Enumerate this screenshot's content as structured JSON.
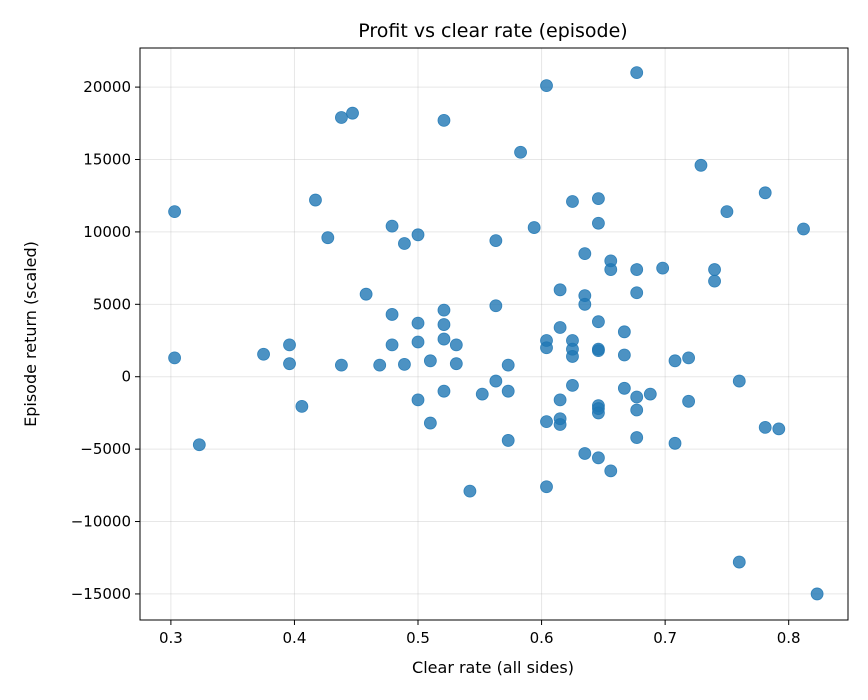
{
  "chart_data": {
    "type": "scatter",
    "title": "Profit vs clear rate (episode)",
    "xlabel": "Clear rate (all sides)",
    "ylabel": "Episode return (scaled)",
    "xlim": [
      0.275,
      0.848
    ],
    "ylim": [
      -16800,
      22700
    ],
    "xticks": [
      0.3,
      0.4,
      0.5,
      0.6,
      0.7,
      0.8
    ],
    "xtick_labels": [
      "0.3",
      "0.4",
      "0.5",
      "0.6",
      "0.7",
      "0.8"
    ],
    "yticks": [
      -15000,
      -10000,
      -5000,
      0,
      5000,
      10000,
      15000,
      20000
    ],
    "ytick_labels": [
      "−15000",
      "−10000",
      "−5000",
      "0",
      "5000",
      "10000",
      "15000",
      "20000"
    ],
    "grid": true,
    "marker_color": "#1f77b4",
    "points": [
      {
        "x": 0.303,
        "y": 11400
      },
      {
        "x": 0.303,
        "y": 1300
      },
      {
        "x": 0.323,
        "y": -4700
      },
      {
        "x": 0.375,
        "y": 1550
      },
      {
        "x": 0.396,
        "y": 2200
      },
      {
        "x": 0.396,
        "y": 900
      },
      {
        "x": 0.406,
        "y": -2050
      },
      {
        "x": 0.417,
        "y": 12200
      },
      {
        "x": 0.427,
        "y": 9600
      },
      {
        "x": 0.438,
        "y": 17900
      },
      {
        "x": 0.447,
        "y": 18200
      },
      {
        "x": 0.438,
        "y": 800
      },
      {
        "x": 0.458,
        "y": 5700
      },
      {
        "x": 0.469,
        "y": 800
      },
      {
        "x": 0.479,
        "y": 10400
      },
      {
        "x": 0.479,
        "y": 4300
      },
      {
        "x": 0.479,
        "y": 2200
      },
      {
        "x": 0.489,
        "y": 9200
      },
      {
        "x": 0.489,
        "y": 850
      },
      {
        "x": 0.5,
        "y": 9800
      },
      {
        "x": 0.5,
        "y": 3700
      },
      {
        "x": 0.5,
        "y": 2400
      },
      {
        "x": 0.5,
        "y": -1600
      },
      {
        "x": 0.51,
        "y": 1100
      },
      {
        "x": 0.51,
        "y": -3200
      },
      {
        "x": 0.521,
        "y": 17700
      },
      {
        "x": 0.521,
        "y": 4600
      },
      {
        "x": 0.521,
        "y": 3600
      },
      {
        "x": 0.521,
        "y": 2600
      },
      {
        "x": 0.521,
        "y": -1000
      },
      {
        "x": 0.531,
        "y": 2200
      },
      {
        "x": 0.531,
        "y": 900
      },
      {
        "x": 0.542,
        "y": -7900
      },
      {
        "x": 0.552,
        "y": -1200
      },
      {
        "x": 0.563,
        "y": 9400
      },
      {
        "x": 0.563,
        "y": 4900
      },
      {
        "x": 0.563,
        "y": -300
      },
      {
        "x": 0.573,
        "y": 800
      },
      {
        "x": 0.573,
        "y": -1000
      },
      {
        "x": 0.573,
        "y": -4400
      },
      {
        "x": 0.583,
        "y": 15500
      },
      {
        "x": 0.594,
        "y": 10300
      },
      {
        "x": 0.604,
        "y": 20100
      },
      {
        "x": 0.604,
        "y": 2500
      },
      {
        "x": 0.604,
        "y": 2000
      },
      {
        "x": 0.604,
        "y": -3100
      },
      {
        "x": 0.604,
        "y": -7600
      },
      {
        "x": 0.615,
        "y": 6000
      },
      {
        "x": 0.615,
        "y": 3400
      },
      {
        "x": 0.615,
        "y": -1600
      },
      {
        "x": 0.615,
        "y": -2900
      },
      {
        "x": 0.615,
        "y": -3300
      },
      {
        "x": 0.625,
        "y": 12100
      },
      {
        "x": 0.625,
        "y": 2500
      },
      {
        "x": 0.625,
        "y": 1900
      },
      {
        "x": 0.625,
        "y": 1400
      },
      {
        "x": 0.625,
        "y": -600
      },
      {
        "x": 0.635,
        "y": 8500
      },
      {
        "x": 0.635,
        "y": 5600
      },
      {
        "x": 0.635,
        "y": 5000
      },
      {
        "x": 0.635,
        "y": -5300
      },
      {
        "x": 0.646,
        "y": 12300
      },
      {
        "x": 0.646,
        "y": 10600
      },
      {
        "x": 0.646,
        "y": 3800
      },
      {
        "x": 0.646,
        "y": 1900
      },
      {
        "x": 0.646,
        "y": 1800
      },
      {
        "x": 0.646,
        "y": -2000
      },
      {
        "x": 0.646,
        "y": -2200
      },
      {
        "x": 0.646,
        "y": -2500
      },
      {
        "x": 0.646,
        "y": -5600
      },
      {
        "x": 0.656,
        "y": 8000
      },
      {
        "x": 0.656,
        "y": 7400
      },
      {
        "x": 0.656,
        "y": -6500
      },
      {
        "x": 0.667,
        "y": 3100
      },
      {
        "x": 0.667,
        "y": 1500
      },
      {
        "x": 0.667,
        "y": -800
      },
      {
        "x": 0.677,
        "y": 21000
      },
      {
        "x": 0.677,
        "y": 7400
      },
      {
        "x": 0.677,
        "y": 5800
      },
      {
        "x": 0.677,
        "y": -1400
      },
      {
        "x": 0.677,
        "y": -2300
      },
      {
        "x": 0.677,
        "y": -4200
      },
      {
        "x": 0.688,
        "y": -1200
      },
      {
        "x": 0.698,
        "y": 7500
      },
      {
        "x": 0.708,
        "y": 1100
      },
      {
        "x": 0.708,
        "y": -4600
      },
      {
        "x": 0.719,
        "y": 1300
      },
      {
        "x": 0.719,
        "y": -1700
      },
      {
        "x": 0.729,
        "y": 14600
      },
      {
        "x": 0.74,
        "y": 7400
      },
      {
        "x": 0.74,
        "y": 6600
      },
      {
        "x": 0.75,
        "y": 11400
      },
      {
        "x": 0.76,
        "y": -300
      },
      {
        "x": 0.76,
        "y": -12800
      },
      {
        "x": 0.781,
        "y": 12700
      },
      {
        "x": 0.781,
        "y": -3500
      },
      {
        "x": 0.792,
        "y": -3600
      },
      {
        "x": 0.812,
        "y": 10200
      },
      {
        "x": 0.823,
        "y": -15000
      }
    ]
  }
}
